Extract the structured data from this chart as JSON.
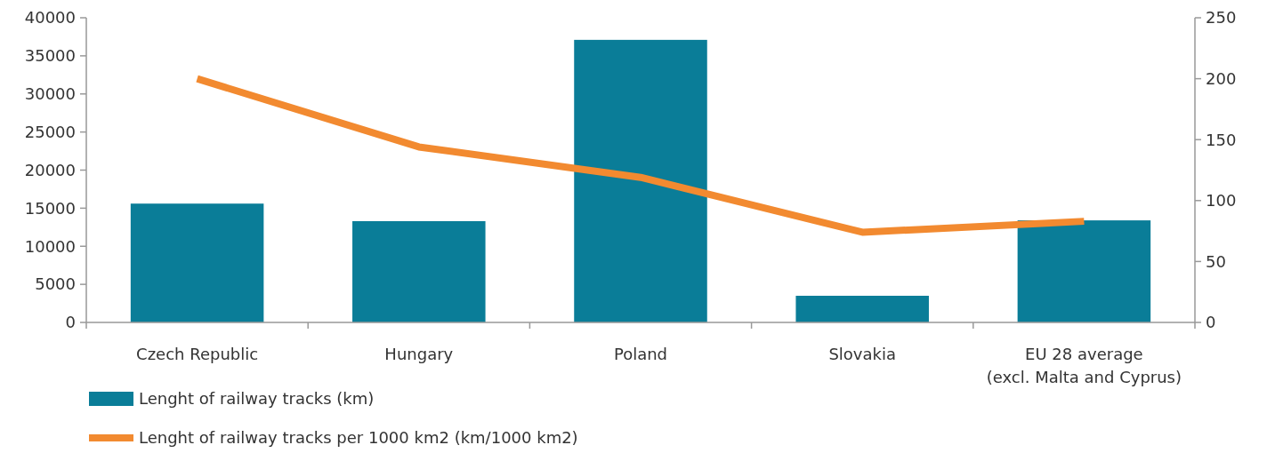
{
  "chart_data": {
    "type": "bar",
    "categories": [
      "Czech Republic",
      "Hungary",
      "Poland",
      "Slovakia",
      "EU 28 average\n(excl. Malta and Cyprus)"
    ],
    "series": [
      {
        "name": "Lenght of railway tracks (km)",
        "color": "#0a7d98",
        "values": [
          15600,
          13300,
          37100,
          3500,
          13400
        ]
      },
      {
        "name": "Lenght of railway tracks per 1000 km2 (km/1000 km2)",
        "type": "line",
        "axis": "y2",
        "color": "#f28a30",
        "values": [
          200,
          144,
          119,
          74,
          83
        ]
      }
    ],
    "ylim": [
      0,
      40000
    ],
    "yticks": [
      0,
      5000,
      10000,
      15000,
      20000,
      25000,
      30000,
      35000,
      40000
    ],
    "y2lim": [
      0,
      250
    ],
    "y2ticks": [
      0,
      50,
      100,
      150,
      200,
      250
    ],
    "grid": false,
    "legend": "bottom",
    "marker": "none",
    "line_style": "solid"
  }
}
